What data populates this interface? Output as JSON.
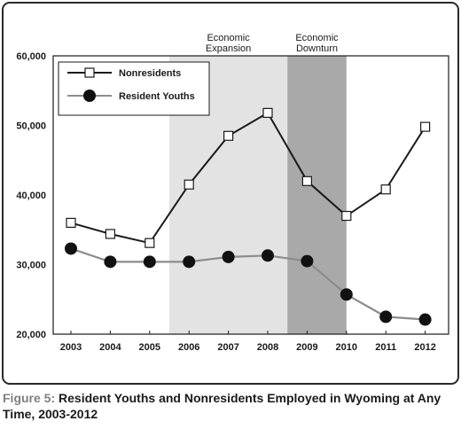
{
  "caption": {
    "prefix": "Figure 5:",
    "text": "Resident Youths and Nonresidents Employed in Wyoming at Any Time, 2003-2012"
  },
  "chart_data": {
    "type": "line",
    "categories": [
      "2003",
      "2004",
      "2005",
      "2006",
      "2007",
      "2008",
      "2009",
      "2010",
      "2011",
      "2012"
    ],
    "ylim": [
      20000,
      60000
    ],
    "yticks": [
      20000,
      30000,
      40000,
      50000,
      60000
    ],
    "ytick_labels": [
      "20,000",
      "30,000",
      "40,000",
      "50,000",
      "60,000"
    ],
    "grid": false,
    "legend": "top-left",
    "series": [
      {
        "name": "Nonresidents",
        "marker": "open-square",
        "color": "#1a1a1a",
        "values": [
          36000,
          34400,
          33100,
          41500,
          48500,
          51800,
          42000,
          37000,
          40800,
          49800
        ]
      },
      {
        "name": "Resident Youths",
        "marker": "filled-circle",
        "color": "#8c8c8c",
        "values": [
          32300,
          30400,
          30400,
          30400,
          31100,
          31300,
          30500,
          25700,
          22500,
          22100
        ]
      }
    ],
    "bands": [
      {
        "label_lines": [
          "Economic",
          "Expansion"
        ],
        "from_index": 2.5,
        "to_index": 5.5,
        "color": "#e3e3e3"
      },
      {
        "label_lines": [
          "Economic",
          "Downturn"
        ],
        "from_index": 5.5,
        "to_index": 7.0,
        "color": "#a9a9a9"
      }
    ]
  }
}
